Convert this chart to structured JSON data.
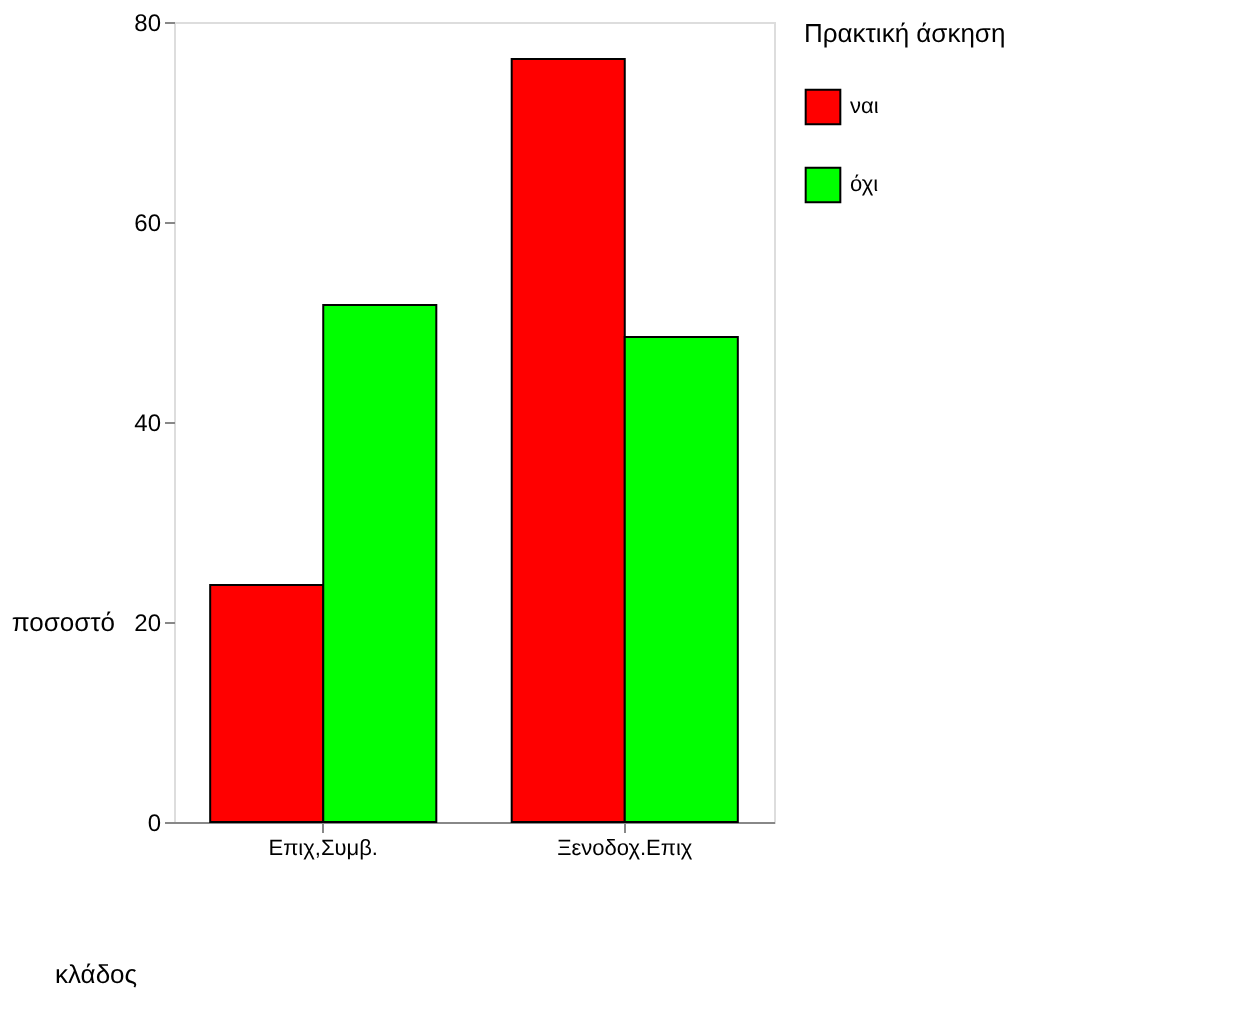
{
  "chart_data": {
    "type": "bar",
    "xlabel": "κλάδος",
    "ylabel": "ποσοστό",
    "legend_title": "Πρακτική άσκηση",
    "categories": [
      "Επιχ,Συμβ.",
      "Ξενοδοχ.Επιχ"
    ],
    "series": [
      {
        "name": "ναι",
        "color": "#ff0000",
        "values": [
          23.7,
          76.3
        ]
      },
      {
        "name": "όχι",
        "color": "#00ff00",
        "values": [
          51.7,
          48.5
        ]
      }
    ],
    "ylim": [
      0,
      80
    ],
    "yticks": [
      0,
      20,
      40,
      60,
      80
    ],
    "grid": false,
    "legend": "right"
  }
}
